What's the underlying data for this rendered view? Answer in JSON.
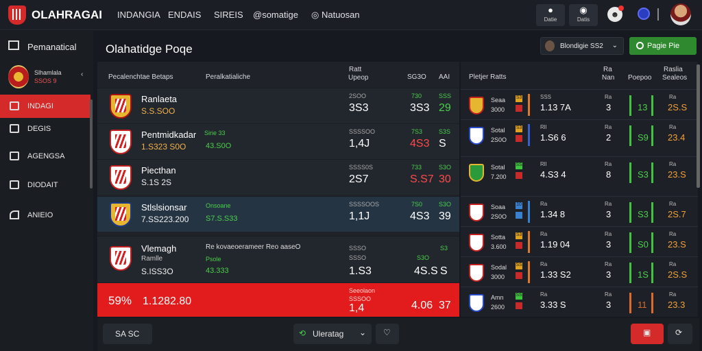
{
  "app": {
    "brand": "OLAHRAGAI",
    "nav": [
      "INDANGIA",
      "ENDAIS",
      "SIREIS",
      "@somatige",
      "Natuosan"
    ]
  },
  "toolbar": {
    "btn1": "Datie",
    "btn2": "Datis"
  },
  "sidebar": {
    "header": "Pemanatical",
    "team_line1": "Slhamlala",
    "team_line2": "SSOS 9",
    "items": [
      "INDAGI",
      "DEGIS",
      "AGENGSA",
      "DIODAIT",
      "ANIEIO"
    ]
  },
  "main": {
    "title": "Olahatidge Poqe",
    "select_label": "Blondigie SS2",
    "green_label": "Pagie Pie"
  },
  "table": {
    "headers": {
      "col1": "Pecalenchtae Betaps",
      "col2": "Peralkatialiche",
      "col3a": "Ratt",
      "col3b": "Upeop",
      "col4": "SG3O",
      "col5": "AAI"
    },
    "rows": [
      {
        "name": "Ranlaeta",
        "sub": "S.S.SOO",
        "mid": "",
        "sm1": "2SOO",
        "v1": "3S3",
        "sm2": "730",
        "v2": "3S3",
        "sm3": "SSS",
        "v3": "29"
      },
      {
        "name": "Pentmidkadar",
        "sub": "1.S323 S0O",
        "mid": "43.S0O",
        "tag": "Sirie 33",
        "sm1": "SSSSOO",
        "v1": "1,4J",
        "sm2": "7S3",
        "v2": "4S3",
        "sm3": "S3S",
        "v3": "S"
      },
      {
        "name": "Piecthan",
        "sub": "S.1S 2S",
        "mid": "",
        "sm1": "SSSS0S",
        "v1": "2S7",
        "sm2": "733",
        "v2": "S.S7",
        "sm3": "S3O",
        "v3": "30"
      },
      {
        "name": "Stlslsionsar",
        "sub": "7.SS223.200",
        "mid": "S7.S.S33",
        "tag": "Onsoane",
        "sm1": "SSSSOOS",
        "v1": "1,1J",
        "sm2": "7S0",
        "v2": "4S3",
        "sm3": "S3O",
        "v3": "39"
      },
      {
        "name": "Vlemagh",
        "sub": "S.ISS3O",
        "sub2": "Ramlle",
        "mid": "43.333",
        "tag": "Psole",
        "tagtop": "Re kovaeoerameer Reo aaseO",
        "sm1": "SSSO",
        "sm1b": "SSSO",
        "v1": "1.S3",
        "sm2": "S3O",
        "v2": "4S.S",
        "sm3": "S3",
        "v3": "S"
      },
      {
        "pct": "59%",
        "sub": "1.1282.80",
        "sm0": "Seeolaon",
        "sm1": "SSSOO",
        "v1": "1,4",
        "v2": "4.06",
        "v3": "37"
      }
    ]
  },
  "panel": {
    "headers": {
      "h1": "Pletjer Ratts",
      "h2a": "Ra",
      "h2b": "Nan",
      "h3": "Poepoo",
      "h4a": "Raslia",
      "h4b": "Sealeos"
    },
    "rows": [
      {
        "t1": "Seaa",
        "t2": "3000",
        "b": "S3",
        "v1": "SSS",
        "v2": "1.13 7A",
        "v3": "Ra",
        "v4": "3",
        "v5": "13",
        "v6": "Ra",
        "v7": "2S.S"
      },
      {
        "t1": "Sotal",
        "t2": "2S0O",
        "b": "S3",
        "v1": "Rll",
        "v2": "1.S6 6",
        "v3": "Ra",
        "v4": "2",
        "v5": "S9",
        "v6": "Ra",
        "v7": "23.4"
      },
      {
        "t1": "Sotal",
        "t2": "7.200",
        "b": "SS",
        "v1": "Rll",
        "v2": "4.S3 4",
        "v3": "Ra",
        "v4": "8",
        "v5": "S3",
        "v6": "Ra",
        "v7": "23.S"
      },
      {
        "t1": "Soaa",
        "t2": "2S0O",
        "b": "10",
        "v1": "Ra",
        "v2": "1.34 8",
        "v3": "Ra",
        "v4": "3",
        "v5": "S3",
        "v6": "Ra",
        "v7": "2S.7"
      },
      {
        "t1": "Sotta",
        "t2": "3.600",
        "b": "S3",
        "v1": "Ra",
        "v2": "1.19 04",
        "v3": "Ra",
        "v4": "3",
        "v5": "S0",
        "v6": "Ra",
        "v7": "23.S"
      },
      {
        "t1": "Sodal",
        "t2": "3000",
        "b": "SS",
        "v1": "Ra",
        "v2": "1.33 S2",
        "v3": "Ra",
        "v4": "3",
        "v5": "1S",
        "v6": "Ra",
        "v7": "2S.S"
      },
      {
        "t1": "Amn",
        "t2": "2600",
        "b": "SS",
        "v1": "Ra",
        "v2": "3.33 S",
        "v3": "Ra",
        "v4": "3",
        "v5": "11",
        "v6": "Ra",
        "v7": "23.3"
      }
    ]
  },
  "footer": {
    "left": "SA SC",
    "center": "Uleratag"
  }
}
